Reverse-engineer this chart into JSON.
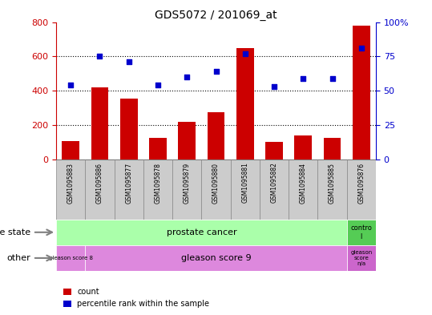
{
  "title": "GDS5072 / 201069_at",
  "samples": [
    "GSM1095883",
    "GSM1095886",
    "GSM1095877",
    "GSM1095878",
    "GSM1095879",
    "GSM1095880",
    "GSM1095881",
    "GSM1095882",
    "GSM1095884",
    "GSM1095885",
    "GSM1095876"
  ],
  "counts": [
    105,
    420,
    355,
    125,
    220,
    275,
    650,
    100,
    140,
    125,
    780
  ],
  "percentiles": [
    54,
    75,
    71,
    54,
    60,
    64,
    77,
    53,
    59,
    59,
    81
  ],
  "ylim_left": [
    0,
    800
  ],
  "ylim_right": [
    0,
    100
  ],
  "yticks_left": [
    0,
    200,
    400,
    600,
    800
  ],
  "yticks_right": [
    0,
    25,
    50,
    75,
    100
  ],
  "bar_color": "#cc0000",
  "dot_color": "#0000cc",
  "background_color": "#ffffff",
  "disease_state_colors": {
    "prostate cancer": "#aaffaa",
    "control": "#55cc55"
  },
  "other_colors": {
    "gleason score 8": "#dd88dd",
    "gleason score 9": "#dd88dd",
    "gleason score n/a": "#cc66cc"
  },
  "tick_label_color_left": "#cc0000",
  "tick_label_color_right": "#0000cc",
  "label_color_left": "gray",
  "sample_bg": "#cccccc",
  "sample_border": "#888888",
  "legend_count_color": "#cc0000",
  "legend_dot_color": "#0000cc"
}
